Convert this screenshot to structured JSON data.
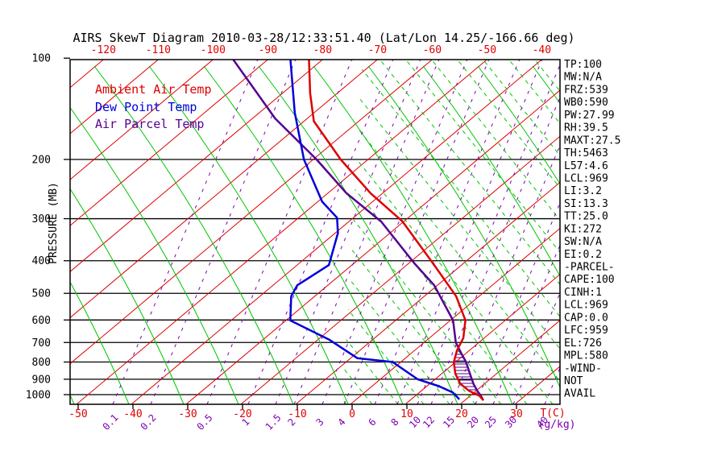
{
  "title": "AIRS SkewT Diagram 2010-03-28/12:33:51.40 (Lat/Lon 14.25/-166.66 deg)",
  "legend": {
    "ambient": "Ambient Air Temp",
    "dewpoint": "Dew Point Temp",
    "parcel": "Air Parcel Temp"
  },
  "axes": {
    "pressure_label": "PRESSURE (MB)",
    "pressure_ticks": [
      100,
      200,
      300,
      400,
      500,
      600,
      700,
      800,
      900,
      1000
    ],
    "top_temp_ticks": [
      -120,
      -110,
      -100,
      -90,
      -80,
      -70,
      -60,
      -50,
      -40
    ],
    "bottom_temp_ticks": [
      -50,
      -40,
      -30,
      -20,
      -10,
      0,
      10,
      20,
      30
    ],
    "temp_unit": "T(C)",
    "mixing_unit": "(g/kg)",
    "mixing_ratio_labels": [
      "0.1",
      "0.2",
      "0.5",
      "1",
      "1.5",
      "2",
      "3",
      "4",
      "6",
      "8",
      "10",
      "12",
      "15",
      "20",
      "25",
      "30",
      "40"
    ],
    "mixing_ratio_x": [
      140,
      187,
      257,
      308,
      342,
      365,
      400,
      427,
      465,
      493,
      518,
      535,
      560,
      590,
      612,
      637,
      676
    ]
  },
  "stats": [
    "TP:100",
    "MW:N/A",
    "FRZ:539",
    "WB0:590",
    "PW:27.99",
    "RH:39.5",
    "MAXT:27.5",
    "TH:5463",
    "L57:4.6",
    "LCL:969",
    "LI:3.2",
    "SI:13.3",
    "TT:25.0",
    "KI:272",
    "SW:N/A",
    "EI:0.2",
    "-PARCEL-",
    "CAPE:100",
    "CINH:1",
    "LCL:969",
    "CAP:0.0",
    "LFC:959",
    "EL:726",
    "MPL:580",
    "-WIND-",
    "NOT",
    "AVAIL"
  ],
  "colors": {
    "ambient": "#dd0000",
    "dewpoint": "#0000dd",
    "parcel": "#550090",
    "isotherm": "#e00000",
    "dry_adiabat": "#00c400",
    "moist_adiabat": "#00c400",
    "mixing_ratio": "#7d00b0",
    "isobar": "#000000",
    "text": "#000000"
  },
  "chart_data": {
    "type": "line",
    "subtype": "skewt-log-p",
    "title": "AIRS SkewT Diagram 2010-03-28/12:33:51.40 (Lat/Lon 14.25/-166.66 deg)",
    "xlabel": "T(C)",
    "ylabel": "PRESSURE (MB)",
    "ylim": [
      100,
      1068
    ],
    "xlim_bottom": [
      -51,
      38
    ],
    "grid": "skewt (isotherms, dry/moist adiabats, mixing-ratio lines)",
    "legend_position": "top-left-inside",
    "series": [
      {
        "name": "Ambient Air Temp",
        "units": [
          "mb",
          "C"
        ],
        "points": [
          [
            100,
            -82.8
          ],
          [
            127,
            -75.0
          ],
          [
            154,
            -68.2
          ],
          [
            200,
            -55.0
          ],
          [
            252,
            -42.2
          ],
          [
            306,
            -30.2
          ],
          [
            407,
            -15.6
          ],
          [
            510,
            -4.2
          ],
          [
            601,
            2.7
          ],
          [
            679,
            6.2
          ],
          [
            738,
            7.7
          ],
          [
            801,
            9.7
          ],
          [
            867,
            12.5
          ],
          [
            929,
            15.6
          ],
          [
            974,
            18.7
          ],
          [
            1010,
            21.8
          ],
          [
            1040,
            23.4
          ]
        ]
      },
      {
        "name": "Dew Point Temp",
        "units": [
          "mb",
          "C"
        ],
        "points": [
          [
            100,
            -86.2
          ],
          [
            145,
            -73.6
          ],
          [
            200,
            -61.7
          ],
          [
            267,
            -49.2
          ],
          [
            298,
            -43.0
          ],
          [
            331,
            -39.5
          ],
          [
            381,
            -36.1
          ],
          [
            412,
            -34.2
          ],
          [
            473,
            -35.6
          ],
          [
            510,
            -34.3
          ],
          [
            602,
            -29.2
          ],
          [
            686,
            -18.0
          ],
          [
            779,
            -8.8
          ],
          [
            800,
            -1.5
          ],
          [
            900,
            6.8
          ],
          [
            944,
            12.2
          ],
          [
            985,
            16.1
          ],
          [
            1033,
            18.8
          ]
        ]
      },
      {
        "name": "Air Parcel Temp",
        "units": [
          "mb",
          "C"
        ],
        "points": [
          [
            100,
            -96.8
          ],
          [
            151,
            -75.9
          ],
          [
            200,
            -59.4
          ],
          [
            252,
            -46.6
          ],
          [
            306,
            -34.1
          ],
          [
            407,
            -19.0
          ],
          [
            473,
            -10.6
          ],
          [
            602,
            0.5
          ],
          [
            700,
            5.8
          ],
          [
            758,
            9.4
          ],
          [
            800,
            11.9
          ],
          [
            876,
            15.6
          ],
          [
            929,
            18.0
          ],
          [
            974,
            20.2
          ],
          [
            1005,
            21.8
          ],
          [
            1040,
            23.4
          ]
        ]
      }
    ],
    "cape_hatch_region": {
      "between": [
        "Air Parcel Temp",
        "Ambient Air Temp"
      ],
      "pressure_range_mb": [
        726,
        1010
      ]
    },
    "annotations": [
      "TP:100",
      "MW:N/A",
      "FRZ:539",
      "WB0:590",
      "PW:27.99",
      "RH:39.5",
      "MAXT:27.5",
      "TH:5463",
      "L57:4.6",
      "LCL:969",
      "LI:3.2",
      "SI:13.3",
      "TT:25.0",
      "KI:272",
      "SW:N/A",
      "EI:0.2",
      "-PARCEL-",
      "CAPE:100",
      "CINH:1",
      "LCL:969",
      "CAP:0.0",
      "LFC:959",
      "EL:726",
      "MPL:580",
      "-WIND-",
      "NOT",
      "AVAIL"
    ]
  }
}
